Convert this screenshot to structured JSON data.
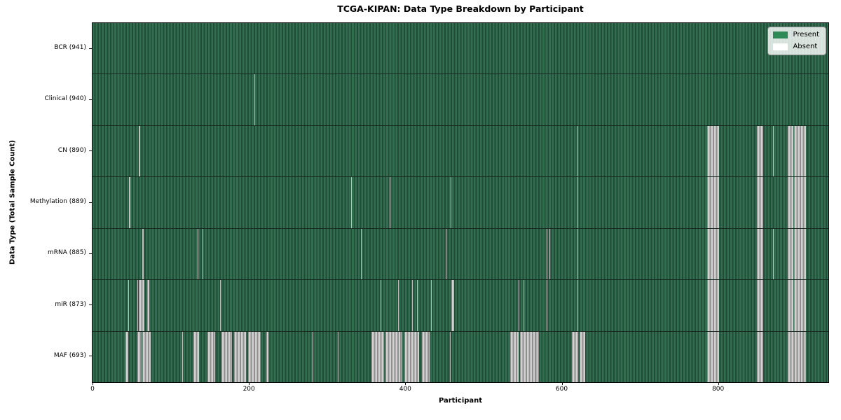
{
  "chart_data": {
    "type": "heatmap",
    "title": "TCGA-KIPAN: Data Type Breakdown by Participant",
    "xlabel": "Participant",
    "ylabel": "Data Type (Total Sample Count)",
    "x_range": [
      0,
      941
    ],
    "x_ticks": [
      0,
      200,
      400,
      600,
      800
    ],
    "grid": false,
    "legend_position": "upper right",
    "legend": [
      {
        "label": "Present",
        "color": "#2e8b57"
      },
      {
        "label": "Absent",
        "color": "#ffffff"
      }
    ],
    "colors": {
      "present_light": "#346e51",
      "present_dark": "#1f4c37",
      "absent_light": "#d0d0d0",
      "absent_dark": "#8f8f8f",
      "plot_border": "#000000"
    },
    "rows": [
      {
        "label": "BCR (941)",
        "data_type": "BCR",
        "total_sample_count": 941,
        "absent_ranges": []
      },
      {
        "label": "Clinical (940)",
        "data_type": "Clinical",
        "total_sample_count": 940,
        "absent_ranges": [
          [
            207,
            207
          ]
        ]
      },
      {
        "label": "CN (890)",
        "data_type": "CN",
        "total_sample_count": 890,
        "absent_ranges": [
          [
            59,
            60
          ],
          [
            619,
            619
          ],
          [
            786,
            800
          ],
          [
            850,
            857
          ],
          [
            870,
            870
          ],
          [
            889,
            895
          ],
          [
            897,
            911
          ]
        ]
      },
      {
        "label": "Methylation (889)",
        "data_type": "Methylation",
        "total_sample_count": 889,
        "absent_ranges": [
          [
            47,
            47
          ],
          [
            331,
            331
          ],
          [
            380,
            380
          ],
          [
            458,
            458
          ],
          [
            619,
            619
          ],
          [
            786,
            800
          ],
          [
            850,
            857
          ],
          [
            889,
            895
          ],
          [
            897,
            911
          ]
        ]
      },
      {
        "label": "mRNA (885)",
        "data_type": "mRNA",
        "total_sample_count": 885,
        "absent_ranges": [
          [
            64,
            64
          ],
          [
            134,
            134
          ],
          [
            141,
            141
          ],
          [
            343,
            343
          ],
          [
            452,
            452
          ],
          [
            581,
            581
          ],
          [
            584,
            584
          ],
          [
            619,
            619
          ],
          [
            786,
            800
          ],
          [
            850,
            857
          ],
          [
            870,
            870
          ],
          [
            889,
            895
          ],
          [
            897,
            911
          ]
        ]
      },
      {
        "label": "miR (873)",
        "data_type": "miR",
        "total_sample_count": 873,
        "absent_ranges": [
          [
            46,
            46
          ],
          [
            57,
            57
          ],
          [
            59,
            65
          ],
          [
            70,
            72
          ],
          [
            163,
            163
          ],
          [
            368,
            368
          ],
          [
            391,
            391
          ],
          [
            409,
            409
          ],
          [
            415,
            415
          ],
          [
            433,
            433
          ],
          [
            459,
            461
          ],
          [
            545,
            545
          ],
          [
            551,
            551
          ],
          [
            581,
            581
          ],
          [
            619,
            619
          ],
          [
            786,
            800
          ],
          [
            850,
            857
          ],
          [
            889,
            895
          ],
          [
            897,
            911
          ]
        ]
      },
      {
        "label": "MAF (693)",
        "data_type": "MAF",
        "total_sample_count": 693,
        "absent_ranges": [
          [
            42,
            45
          ],
          [
            57,
            62
          ],
          [
            64,
            73
          ],
          [
            115,
            115
          ],
          [
            129,
            135
          ],
          [
            147,
            156
          ],
          [
            165,
            177
          ],
          [
            181,
            195
          ],
          [
            199,
            214
          ],
          [
            222,
            224
          ],
          [
            281,
            281
          ],
          [
            314,
            314
          ],
          [
            357,
            372
          ],
          [
            375,
            395
          ],
          [
            399,
            417
          ],
          [
            421,
            430
          ],
          [
            457,
            457
          ],
          [
            534,
            544
          ],
          [
            547,
            570
          ],
          [
            613,
            620
          ],
          [
            623,
            629
          ],
          [
            786,
            800
          ],
          [
            850,
            857
          ],
          [
            889,
            911
          ]
        ]
      }
    ]
  }
}
